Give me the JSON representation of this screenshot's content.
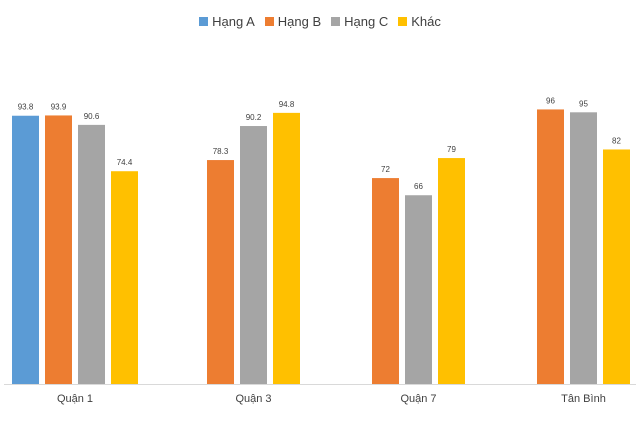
{
  "chart_data": {
    "type": "bar",
    "title": "",
    "xlabel": "",
    "ylabel": "",
    "ylim": [
      0,
      100
    ],
    "grid": false,
    "legend_position": "top",
    "categories": [
      "Quận 1",
      "Quận 3",
      "Quận 7",
      "Tân Bình"
    ],
    "series": [
      {
        "name": "Hạng A",
        "color": "#5B9BD5",
        "values": [
          93.8,
          null,
          null,
          null
        ]
      },
      {
        "name": "Hạng B",
        "color": "#ED7D31",
        "values": [
          93.9,
          78.3,
          72,
          96
        ]
      },
      {
        "name": "Hạng C",
        "color": "#A5A5A5",
        "values": [
          90.6,
          90.2,
          66,
          95
        ]
      },
      {
        "name": "Khác",
        "color": "#FFC000",
        "values": [
          74.4,
          94.8,
          79,
          82
        ]
      }
    ]
  }
}
